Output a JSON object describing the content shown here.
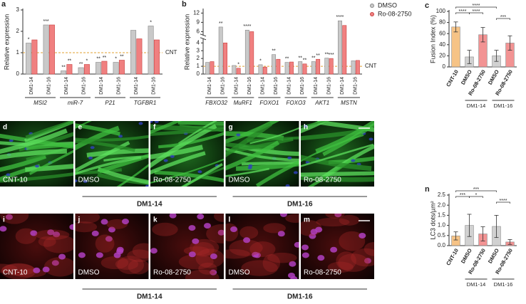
{
  "chart_data": [
    {
      "panel": "a",
      "type": "bar",
      "y_label": "Relative expression",
      "ylim": [
        0,
        3
      ],
      "yticks": [
        0,
        1,
        2,
        3
      ],
      "reference": {
        "value": 1,
        "label": "CNT"
      },
      "categories": [
        "DM1-14",
        "DM1-16",
        "DM1-14",
        "DM1-16",
        "DM1-14",
        "DM1-16",
        "DM1-14",
        "DM1-16"
      ],
      "groups": [
        "MSI2",
        "miR-7",
        "P21",
        "TGFBR1"
      ],
      "series": [
        {
          "color": "#c9c9c9",
          "values": [
            1.45,
            2.3,
            0.15,
            0.3,
            0.55,
            0.55,
            2.05,
            2.25
          ],
          "stars": [
            "*",
            "***",
            "**",
            "**",
            "**",
            "*",
            null,
            "*"
          ]
        },
        {
          "color": "#f08080",
          "values": [
            1.6,
            2.3,
            0.45,
            0.45,
            0.6,
            0.65,
            1.65,
            1.6
          ],
          "stars": [
            null,
            null,
            "**",
            "*",
            "**",
            "**",
            null,
            null
          ]
        }
      ]
    },
    {
      "panel": "b",
      "type": "bar",
      "y_label": "Relative expression",
      "ylim": [
        0,
        13
      ],
      "ybreak": [
        4.5,
        5
      ],
      "yticks": [
        0,
        1,
        2,
        3,
        4,
        6,
        9,
        12
      ],
      "reference": {
        "value": 1,
        "label": "CNT"
      },
      "legend": "top-right",
      "categories": [
        "DM1-14",
        "DM1-16",
        "DM1-14",
        "DM1-16",
        "DM1-14",
        "DM1-16",
        "DM1-14",
        "DM1-16",
        "DM1-14",
        "DM1-16",
        "DM1-14",
        "DM1-16"
      ],
      "groups": [
        "FBXO32",
        "MuRF1",
        "FOXO1",
        "FOXO3",
        "AKT1",
        "MSTN"
      ],
      "series": [
        {
          "name": "DMSO",
          "color": "#c9c9c9",
          "values": [
            1.5,
            7.5,
            1.1,
            6.5,
            1.2,
            2.5,
            1.5,
            1.6,
            1.6,
            2.05,
            9.5,
            1.7
          ],
          "stars": [
            null,
            "**",
            null,
            "****",
            "*",
            "**",
            "**",
            "**",
            "**",
            "**",
            "****",
            null
          ]
        },
        {
          "name": "Ro-08-2750",
          "color": "#f08080",
          "values": [
            1.6,
            4.0,
            0.75,
            6.0,
            0.9,
            1.9,
            1.55,
            1.3,
            1.9,
            2.0,
            8.0,
            1.75
          ],
          "stars": [
            null,
            null,
            "*",
            null,
            null,
            null,
            null,
            "**",
            "**",
            "***",
            null,
            null
          ]
        }
      ]
    },
    {
      "panel": "c",
      "type": "bar",
      "y_label": "Fusion Index (%)",
      "ylim": [
        0,
        100
      ],
      "yticks": [
        0,
        20,
        40,
        60,
        80,
        100
      ],
      "categories": [
        "CNT-10",
        "DMSO",
        "Ro-08-2750",
        "DMSO",
        "Ro-08-2750"
      ],
      "values": [
        72,
        18,
        58,
        20,
        43
      ],
      "errors": [
        9,
        12,
        13,
        10,
        13
      ],
      "colors": [
        "#f5b971",
        "#c9c9c9",
        "#f08080",
        "#c9c9c9",
        "#f08080"
      ],
      "groups": [
        {
          "label": "DM1-14",
          "span": [
            1,
            2
          ]
        },
        {
          "label": "DM1-16",
          "span": [
            3,
            4
          ]
        }
      ],
      "comparisons": [
        {
          "pair": [
            0,
            3
          ],
          "label": "****"
        },
        {
          "pair": [
            0,
            1
          ],
          "label": "****"
        },
        {
          "pair": [
            1,
            2
          ],
          "label": "****"
        },
        {
          "pair": [
            3,
            4
          ],
          "label": "***"
        }
      ]
    },
    {
      "panel": "n",
      "type": "bar",
      "y_label": "LC3 dots/µm²",
      "ylim": [
        0,
        2.5
      ],
      "yticks": [
        {
          "value": 0,
          "label": "0.0"
        },
        0.5,
        {
          "value": 1,
          "label": "1.0"
        },
        1.5,
        {
          "value": 2,
          "label": "2.0"
        },
        2.5
      ],
      "categories": [
        "CNT-10",
        "DMSO",
        "Ro-08-2750",
        "DMSO",
        "Ro-08-2750"
      ],
      "values": [
        0.48,
        1.0,
        0.58,
        0.95,
        0.18
      ],
      "errors": [
        0.2,
        0.55,
        0.35,
        0.55,
        0.12
      ],
      "colors": [
        "#f5b971",
        "#c9c9c9",
        "#f08080",
        "#c9c9c9",
        "#f08080"
      ],
      "groups": [
        {
          "label": "DM1-14",
          "span": [
            1,
            2
          ]
        },
        {
          "label": "DM1-16",
          "span": [
            3,
            4
          ]
        }
      ],
      "comparisons": [
        {
          "pair": [
            0,
            3
          ],
          "label": "***"
        },
        {
          "pair": [
            0,
            1
          ],
          "label": "***"
        },
        {
          "pair": [
            1,
            2
          ],
          "label": "*"
        },
        {
          "pair": [
            3,
            4
          ],
          "label": "****"
        }
      ]
    }
  ],
  "images": {
    "rows": [
      {
        "panels": [
          {
            "letter": "d",
            "label": "CNT-10"
          },
          {
            "letter": "e",
            "label": "DMSO"
          },
          {
            "letter": "f",
            "label": "Ro-08-2750"
          },
          {
            "letter": "g",
            "label": "DMSO"
          },
          {
            "letter": "h",
            "label": "Ro-08-2750"
          }
        ],
        "groups": [
          {
            "label": "DM1-14",
            "span": [
              1,
              2
            ]
          },
          {
            "label": "DM1-16",
            "span": [
              3,
              4
            ]
          }
        ]
      },
      {
        "panels": [
          {
            "letter": "i",
            "label": "CNT-10"
          },
          {
            "letter": "j",
            "label": "DMSO"
          },
          {
            "letter": "k",
            "label": "Ro-08-2750"
          },
          {
            "letter": "l",
            "label": "DMSO"
          },
          {
            "letter": "m",
            "label": "Ro-08-2750"
          }
        ],
        "groups": [
          {
            "label": "DM1-14",
            "span": [
              1,
              2
            ]
          },
          {
            "label": "DM1-16",
            "span": [
              3,
              4
            ]
          }
        ]
      }
    ]
  }
}
